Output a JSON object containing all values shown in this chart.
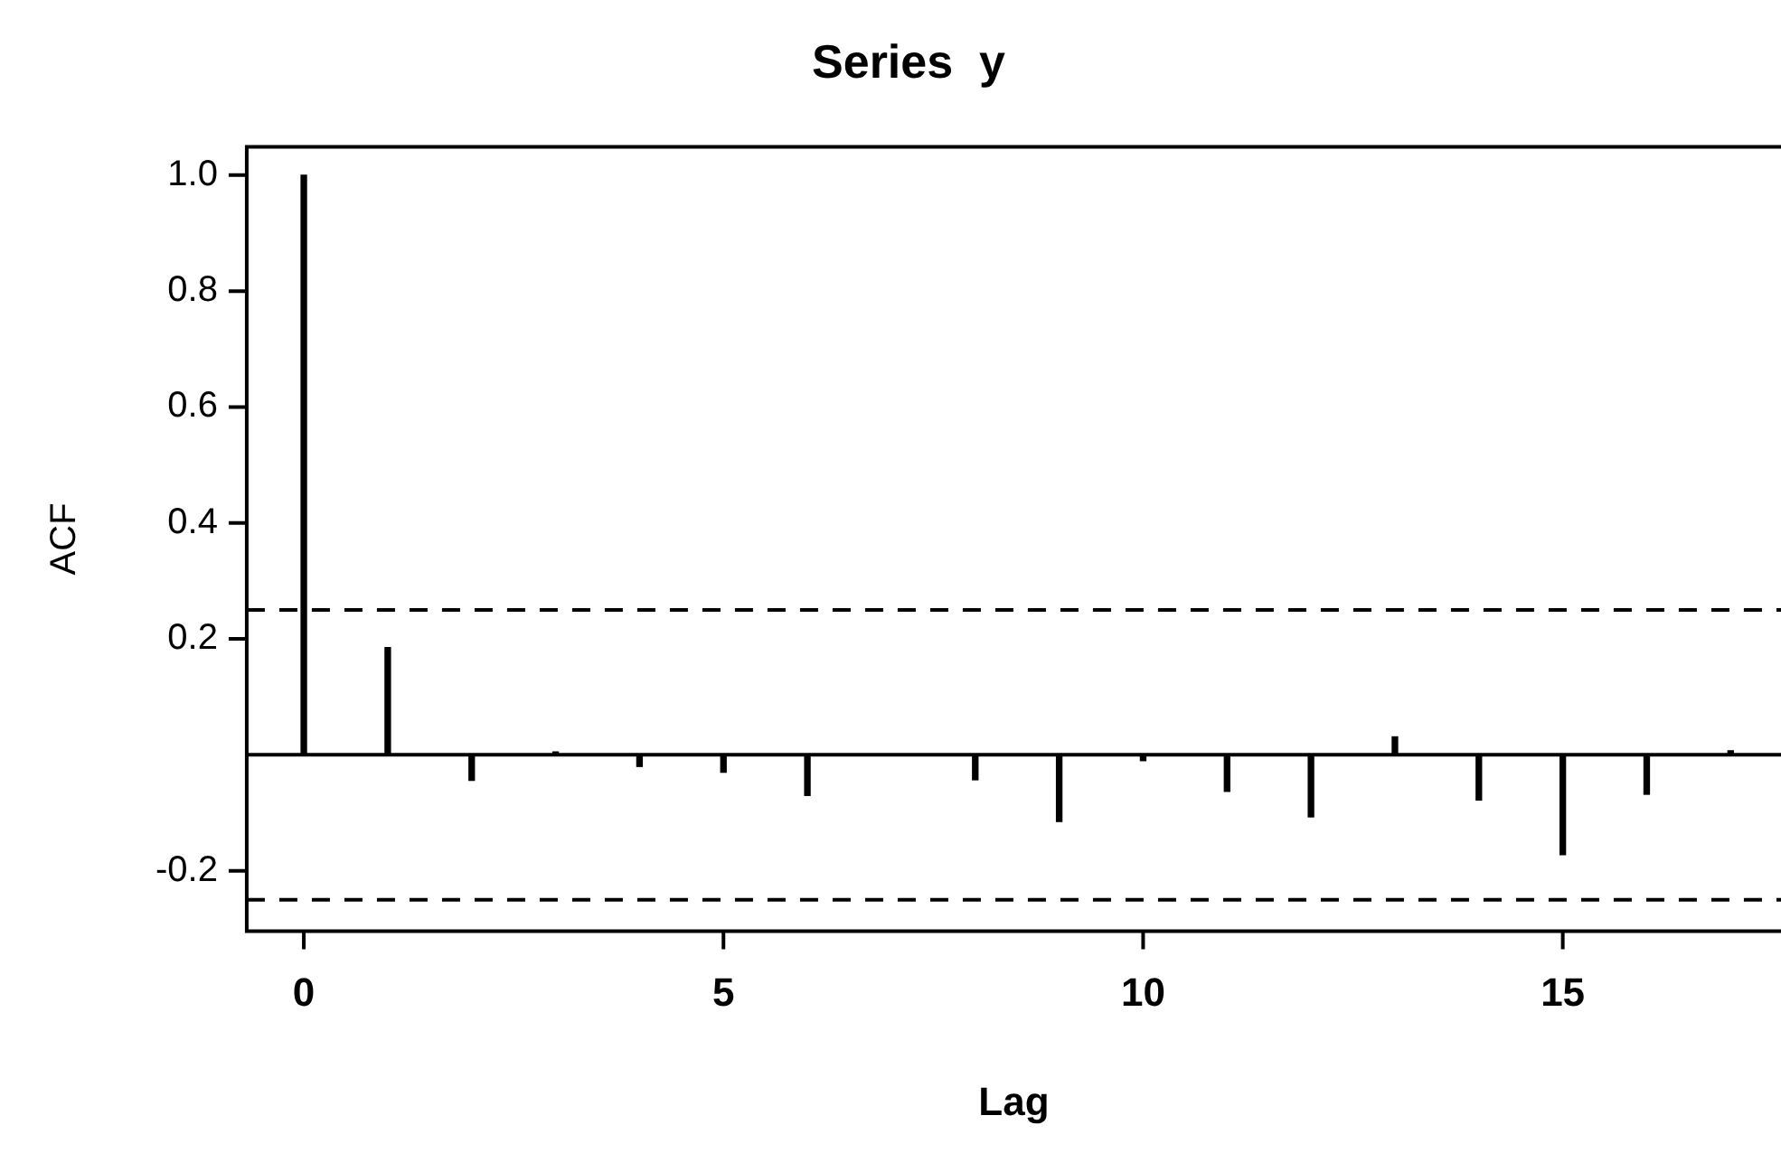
{
  "chart_data": {
    "type": "bar",
    "title": "Series  y",
    "xlabel": "Lag",
    "ylabel": "ACF",
    "x": [
      0,
      1,
      2,
      3,
      4,
      5,
      6,
      7,
      8,
      9,
      10,
      11,
      12,
      13,
      14,
      15,
      16,
      17
    ],
    "values": [
      1.0,
      0.185,
      -0.044,
      0.005,
      -0.02,
      -0.03,
      -0.07,
      0.0,
      -0.043,
      -0.115,
      -0.01,
      -0.063,
      -0.107,
      0.031,
      -0.078,
      -0.172,
      -0.068,
      0.007
    ],
    "color": "#000000",
    "xlim": [
      -0.68,
      17.6
    ],
    "xticks": [
      0,
      5,
      10,
      15
    ],
    "ylim": [
      -0.304,
      1.049
    ],
    "yticks": [
      {
        "value": -0.2,
        "label": "-0.2"
      },
      {
        "value": 0.2,
        "label": "0.2"
      },
      {
        "value": 0.4,
        "label": "0.4"
      },
      {
        "value": 0.6,
        "label": "0.6"
      },
      {
        "value": 0.8,
        "label": "0.8"
      },
      {
        "value": 1,
        "label": "1.0"
      }
    ],
    "ref_lines": [
      {
        "axis": "y",
        "value": 0,
        "color": "#000000",
        "line_style": "solid"
      },
      {
        "axis": "y",
        "value": 0.25,
        "color": "#000000",
        "line_style": "dashed"
      },
      {
        "axis": "y",
        "value": -0.25,
        "color": "#000000",
        "line_style": "dashed"
      }
    ],
    "grid": false,
    "legend": false
  }
}
